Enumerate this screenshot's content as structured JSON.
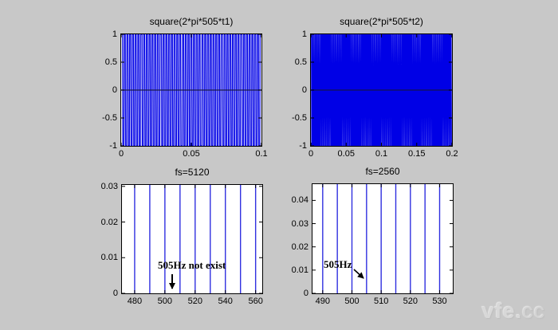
{
  "figure": {
    "background_color": "#c8c8c8",
    "plot_background_color": "#ffffff",
    "axis_color": "#000000"
  },
  "watermark": {
    "bold": "vfe.",
    "light": "cc"
  },
  "chart_data": [
    {
      "id": "square-wave-t1",
      "type": "line",
      "title": "square(2*pi*505*t1)",
      "signal": {
        "kind": "square",
        "frequency_hz": 505,
        "sample_rate_hz": 5120,
        "duration_s": 0.1,
        "amplitude": 1
      },
      "xlim": [
        0,
        0.1
      ],
      "ylim": [
        -1,
        1
      ],
      "xticks": [
        0,
        0.05,
        0.1
      ],
      "xtick_labels": [
        "0",
        "0.05",
        "0.1"
      ],
      "yticks": [
        1,
        0.5,
        0,
        -0.5,
        -1
      ],
      "ytick_labels": [
        "1",
        "0.5",
        "0",
        "-0.5",
        "-1"
      ],
      "line_color": "#0000e6",
      "zero_line_color": "#16163e",
      "grid": false,
      "legend": null
    },
    {
      "id": "square-wave-t2",
      "type": "line",
      "title": "square(2*pi*505*t2)",
      "signal": {
        "kind": "square",
        "frequency_hz": 505,
        "sample_rate_hz": 2560,
        "duration_s": 0.2,
        "amplitude": 1
      },
      "xlim": [
        0,
        0.2
      ],
      "ylim": [
        -1,
        1
      ],
      "xticks": [
        0,
        0.05,
        0.1,
        0.15,
        0.2
      ],
      "xtick_labels": [
        "0",
        "0.05",
        "0.1",
        "0.15",
        "0.2"
      ],
      "yticks": [
        1,
        0.5,
        0,
        -0.5,
        -1
      ],
      "ytick_labels": [
        "1",
        "0.5",
        "0",
        "-0.5",
        "-1"
      ],
      "line_color": "#0000e6",
      "zero_line_color": "#16163e",
      "grid": false,
      "legend": null
    },
    {
      "id": "spectrum-fs5120",
      "type": "stem",
      "title": "fs=5120",
      "stem_frequencies_hz": [
        480,
        490,
        500,
        510,
        520,
        530,
        540,
        550,
        560
      ],
      "stem_spacing_hz": 10,
      "stems_full_height": true,
      "xlim": [
        471.6,
        564.4
      ],
      "ylim": [
        0,
        0.0304
      ],
      "xticks": [
        480,
        500,
        520,
        540,
        560
      ],
      "xtick_labels": [
        "480",
        "500",
        "520",
        "540",
        "560"
      ],
      "yticks": [
        0,
        0.01,
        0.02,
        0.03
      ],
      "ytick_labels": [
        "0",
        "0.01",
        "0.02",
        "0.03"
      ],
      "line_color": "#3030e0",
      "annotation": {
        "text": "505Hz not exist",
        "points_at_hz": 505,
        "arrow_direction": "down"
      },
      "grid": false,
      "legend": null
    },
    {
      "id": "spectrum-fs2560",
      "type": "stem",
      "title": "fs=2560",
      "stem_frequencies_hz": [
        490,
        495,
        500,
        505,
        510,
        515,
        520,
        525,
        530
      ],
      "stem_spacing_hz": 5,
      "stems_full_height": true,
      "xlim": [
        486.5,
        534.5
      ],
      "ylim": [
        0,
        0.047
      ],
      "xticks": [
        490,
        500,
        510,
        520,
        530
      ],
      "xtick_labels": [
        "490",
        "500",
        "510",
        "520",
        "530"
      ],
      "yticks": [
        0,
        0.01,
        0.02,
        0.03,
        0.04
      ],
      "ytick_labels": [
        "0",
        "0.01",
        "0.02",
        "0.03",
        "0.04"
      ],
      "line_color": "#3030e0",
      "annotation": {
        "text": "505Hz",
        "points_at_hz": 505,
        "arrow_direction": "down-right"
      },
      "grid": false,
      "legend": null
    }
  ]
}
